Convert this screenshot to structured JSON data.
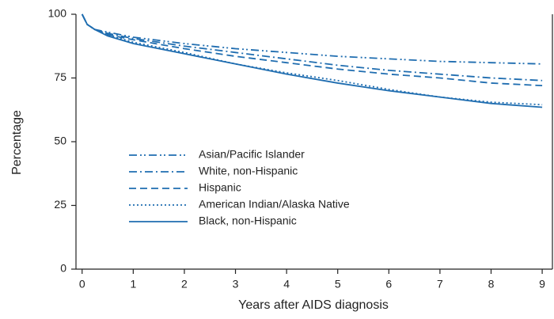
{
  "chart_data": {
    "type": "line",
    "x_label": "Years after AIDS diagnosis",
    "y_label": "Percentage",
    "xlim": [
      -0.12,
      9.2
    ],
    "ylim": [
      0,
      100
    ],
    "xticks": [
      0,
      1,
      2,
      3,
      4,
      5,
      6,
      7,
      8,
      9
    ],
    "yticks": [
      0,
      25,
      50,
      75,
      100
    ],
    "x": [
      0,
      0.1,
      0.25,
      0.5,
      1,
      2,
      3,
      4,
      5,
      6,
      7,
      8,
      9
    ],
    "series": [
      {
        "name": "Asian/Pacific Islander",
        "color": "#1f6db0",
        "dash": "10,4,2,3,2,4",
        "values": [
          100,
          96,
          94,
          93,
          91,
          88.5,
          86.5,
          85,
          83.5,
          82.5,
          81.5,
          81,
          80.5
        ]
      },
      {
        "name": "White, non-Hispanic",
        "color": "#1f6db0",
        "dash": "10,4,2,4",
        "values": [
          100,
          96,
          94,
          92.5,
          90.5,
          87.5,
          85,
          82.5,
          80,
          78,
          76.5,
          75,
          74
        ]
      },
      {
        "name": "Hispanic",
        "color": "#1f6db0",
        "dash": "9,5",
        "values": [
          100,
          96,
          94,
          92,
          90,
          86.5,
          83.5,
          81,
          78.5,
          76.5,
          75,
          73,
          72
        ]
      },
      {
        "name": "American Indian/Alaska Native",
        "color": "#1f6db0",
        "dash": "2,3",
        "values": [
          100,
          96,
          94,
          92,
          89,
          85,
          80.5,
          77,
          74,
          70.5,
          67.5,
          65.5,
          64.5
        ]
      },
      {
        "name": "Black, non-Hispanic",
        "color": "#1f6db0",
        "dash": "none",
        "values": [
          100,
          96,
          94,
          91.5,
          88.5,
          84.5,
          80.5,
          76.5,
          73,
          70,
          67.5,
          65,
          63.5
        ]
      }
    ]
  }
}
